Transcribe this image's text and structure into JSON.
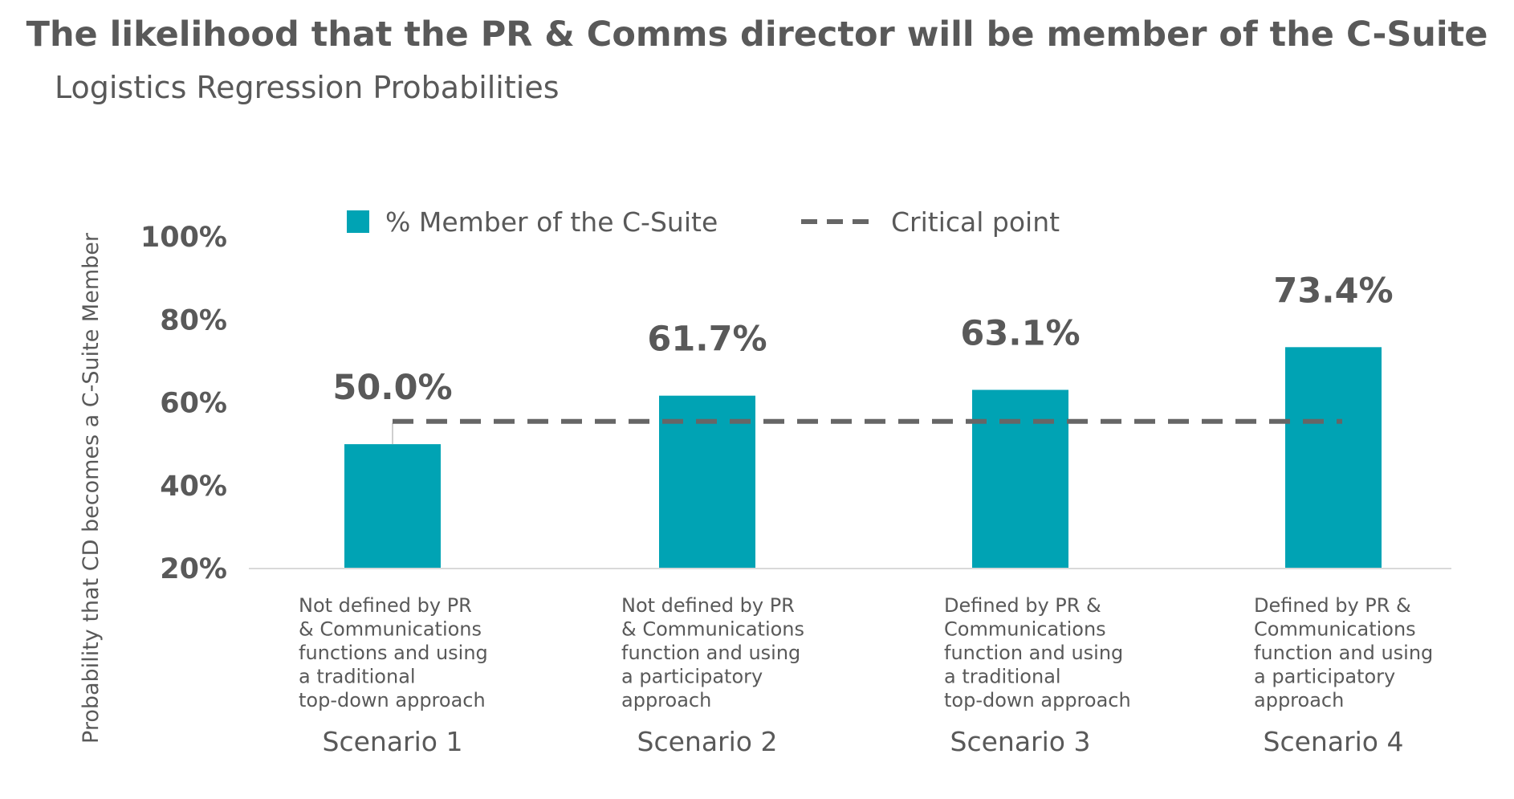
{
  "chart_data": {
    "type": "bar",
    "title": "The likelihood that the PR & Comms director will be member of the C-Suite",
    "subtitle": "Logistics Regression Probabilities",
    "ylabel": "Probability that CD becomes a C-Suite Member",
    "xlabel": "",
    "ylim": [
      20,
      100
    ],
    "yticks": [
      "100%",
      "80%",
      "60%",
      "40%",
      "20%"
    ],
    "ytick_values": [
      100,
      80,
      60,
      40,
      20
    ],
    "categories": [
      "Scenario 1",
      "Scenario 2",
      "Scenario 3",
      "Scenario 4"
    ],
    "category_descriptions": [
      [
        "Not defined by PR",
        "& Communications",
        "functions and using",
        "a traditional",
        "top-down approach"
      ],
      [
        "Not defined by PR",
        "& Communications",
        "function and using",
        "a participatory",
        "approach"
      ],
      [
        "Defined by PR &",
        "Communications",
        "function and using",
        "a traditional",
        "top-down approach"
      ],
      [
        "Defined by PR &",
        "Communications",
        "function and using",
        "a participatory",
        "approach"
      ]
    ],
    "series": [
      {
        "name": "% Member of the C-Suite",
        "values": [
          50.0,
          61.7,
          63.1,
          73.4
        ],
        "labels": [
          "50.0%",
          "61.7%",
          "63.1%",
          "73.4%"
        ],
        "color": "#00A3B4"
      }
    ],
    "critical_point": {
      "name": "Critical point",
      "value": 55.5,
      "color": "#666666"
    },
    "legend_position": "top",
    "grid": false
  }
}
